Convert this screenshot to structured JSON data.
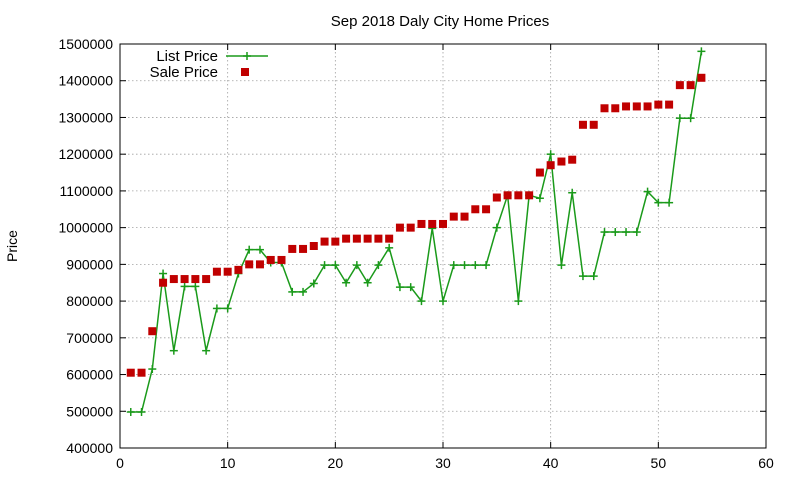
{
  "chart_data": {
    "type": "line",
    "title": "Sep 2018 Daly City Home Prices",
    "xlabel": "",
    "ylabel": "Price",
    "xlim": [
      0,
      60
    ],
    "ylim": [
      400000,
      1500000
    ],
    "xticks": [
      0,
      10,
      20,
      30,
      40,
      50,
      60
    ],
    "yticks": [
      400000,
      500000,
      600000,
      700000,
      800000,
      900000,
      1000000,
      1100000,
      1200000,
      1300000,
      1400000,
      1500000
    ],
    "grid": true,
    "legend": "top-left",
    "series": [
      {
        "name": "List Price",
        "style": "line-points",
        "marker": "plus",
        "color": "#1a9a1a",
        "x": [
          1,
          2,
          3,
          4,
          5,
          6,
          7,
          8,
          9,
          10,
          11,
          12,
          13,
          14,
          15,
          16,
          17,
          18,
          19,
          20,
          21,
          22,
          23,
          24,
          25,
          26,
          27,
          28,
          29,
          30,
          31,
          32,
          33,
          34,
          35,
          36,
          37,
          38,
          39,
          40,
          41,
          42,
          43,
          44,
          45,
          46,
          47,
          48,
          49,
          50,
          51,
          52,
          53,
          54
        ],
        "y": [
          498000,
          498000,
          615000,
          875000,
          665000,
          840000,
          840000,
          665000,
          780000,
          780000,
          875000,
          940000,
          940000,
          905000,
          905000,
          825000,
          825000,
          848000,
          898000,
          898000,
          850000,
          898000,
          850000,
          898000,
          945000,
          838000,
          838000,
          800000,
          998000,
          800000,
          898000,
          898000,
          898000,
          898000,
          1000000,
          1088000,
          800000,
          1088000,
          1080000,
          1200000,
          898000,
          1095000,
          868000,
          868000,
          988000,
          988000,
          988000,
          988000,
          1098000,
          1068000,
          1068000,
          1298000,
          1298000,
          1480000
        ]
      },
      {
        "name": "Sale Price",
        "style": "points",
        "marker": "square",
        "color": "#c00000",
        "x": [
          1,
          2,
          3,
          4,
          5,
          6,
          7,
          8,
          9,
          10,
          11,
          12,
          13,
          14,
          15,
          16,
          17,
          18,
          19,
          20,
          21,
          22,
          23,
          24,
          25,
          26,
          27,
          28,
          29,
          30,
          31,
          32,
          33,
          34,
          35,
          36,
          37,
          38,
          39,
          40,
          41,
          42,
          43,
          44,
          45,
          46,
          47,
          48,
          49,
          50,
          51,
          52,
          53,
          54
        ],
        "y": [
          605000,
          605000,
          718000,
          850000,
          860000,
          860000,
          860000,
          860000,
          880000,
          880000,
          885000,
          900000,
          900000,
          912000,
          912000,
          942000,
          942000,
          950000,
          962000,
          962000,
          970000,
          970000,
          970000,
          970000,
          970000,
          1000000,
          1000000,
          1010000,
          1010000,
          1010000,
          1030000,
          1030000,
          1050000,
          1050000,
          1082000,
          1088000,
          1088000,
          1088000,
          1150000,
          1170000,
          1180000,
          1185000,
          1280000,
          1280000,
          1325000,
          1325000,
          1330000,
          1330000,
          1330000,
          1335000,
          1335000,
          1388000,
          1388000,
          1408000
        ]
      }
    ]
  }
}
